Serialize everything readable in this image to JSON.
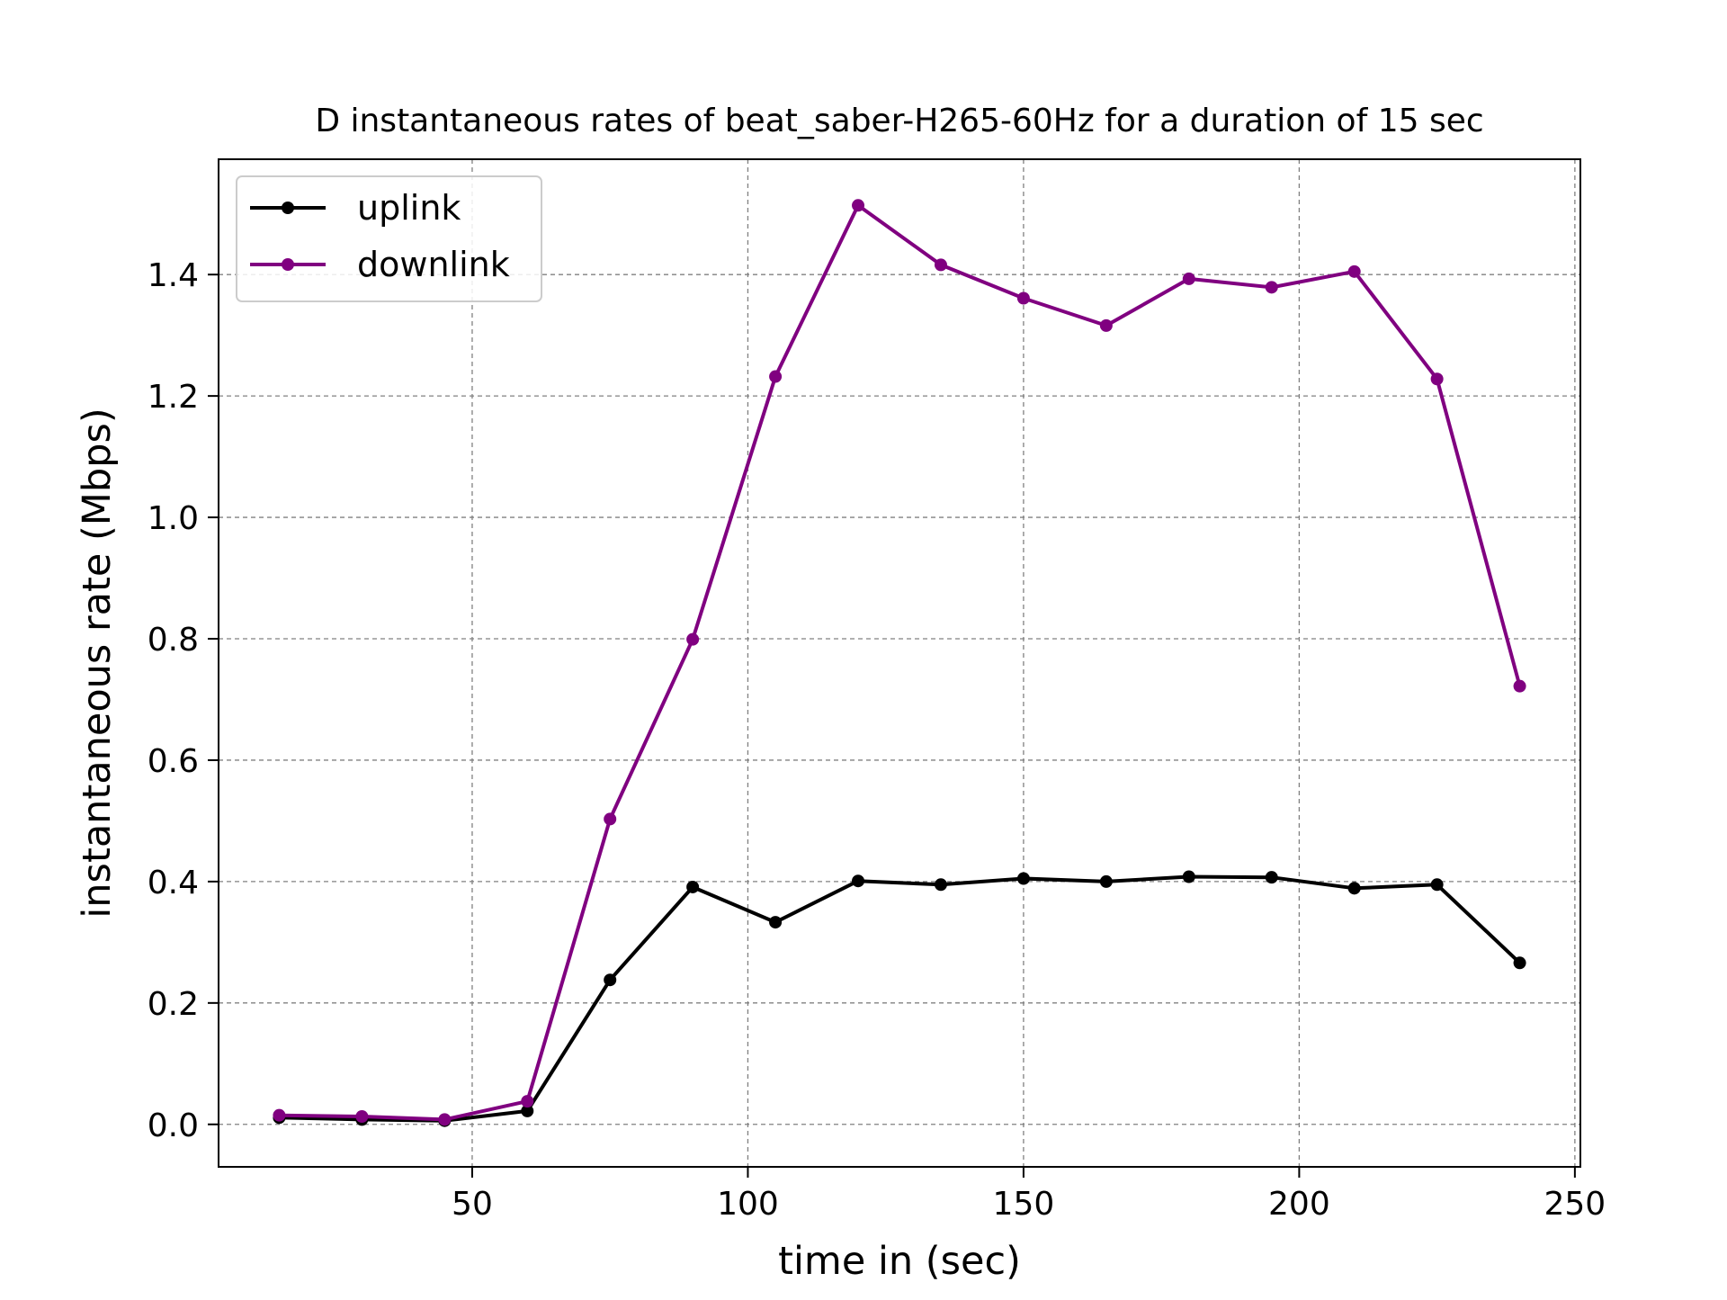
{
  "chart_data": {
    "type": "line",
    "title": "D instantaneous rates of beat_saber-H265-60Hz for a duration of 15 sec",
    "xlabel": "time in (sec)",
    "ylabel": "instantaneous rate (Mbps)",
    "xlim": [
      4,
      251
    ],
    "ylim": [
      -0.07,
      1.59
    ],
    "xticks": [
      50,
      100,
      150,
      200,
      250
    ],
    "yticks": [
      0.0,
      0.2,
      0.4,
      0.6,
      0.8,
      1.0,
      1.2,
      1.4
    ],
    "grid": true,
    "legend_position": "top-left",
    "x": [
      15,
      30,
      45,
      60,
      75,
      90,
      105,
      120,
      135,
      150,
      165,
      180,
      195,
      210,
      225,
      240
    ],
    "series": [
      {
        "name": "uplink",
        "color": "#000000",
        "values": [
          0.011,
          0.008,
          0.006,
          0.022,
          0.238,
          0.391,
          0.333,
          0.401,
          0.395,
          0.405,
          0.4,
          0.408,
          0.407,
          0.389,
          0.395,
          0.266
        ]
      },
      {
        "name": "downlink",
        "color": "#800080",
        "values": [
          0.015,
          0.013,
          0.008,
          0.038,
          0.503,
          0.799,
          1.232,
          1.514,
          1.416,
          1.361,
          1.316,
          1.393,
          1.379,
          1.405,
          1.228,
          0.722
        ]
      }
    ]
  }
}
